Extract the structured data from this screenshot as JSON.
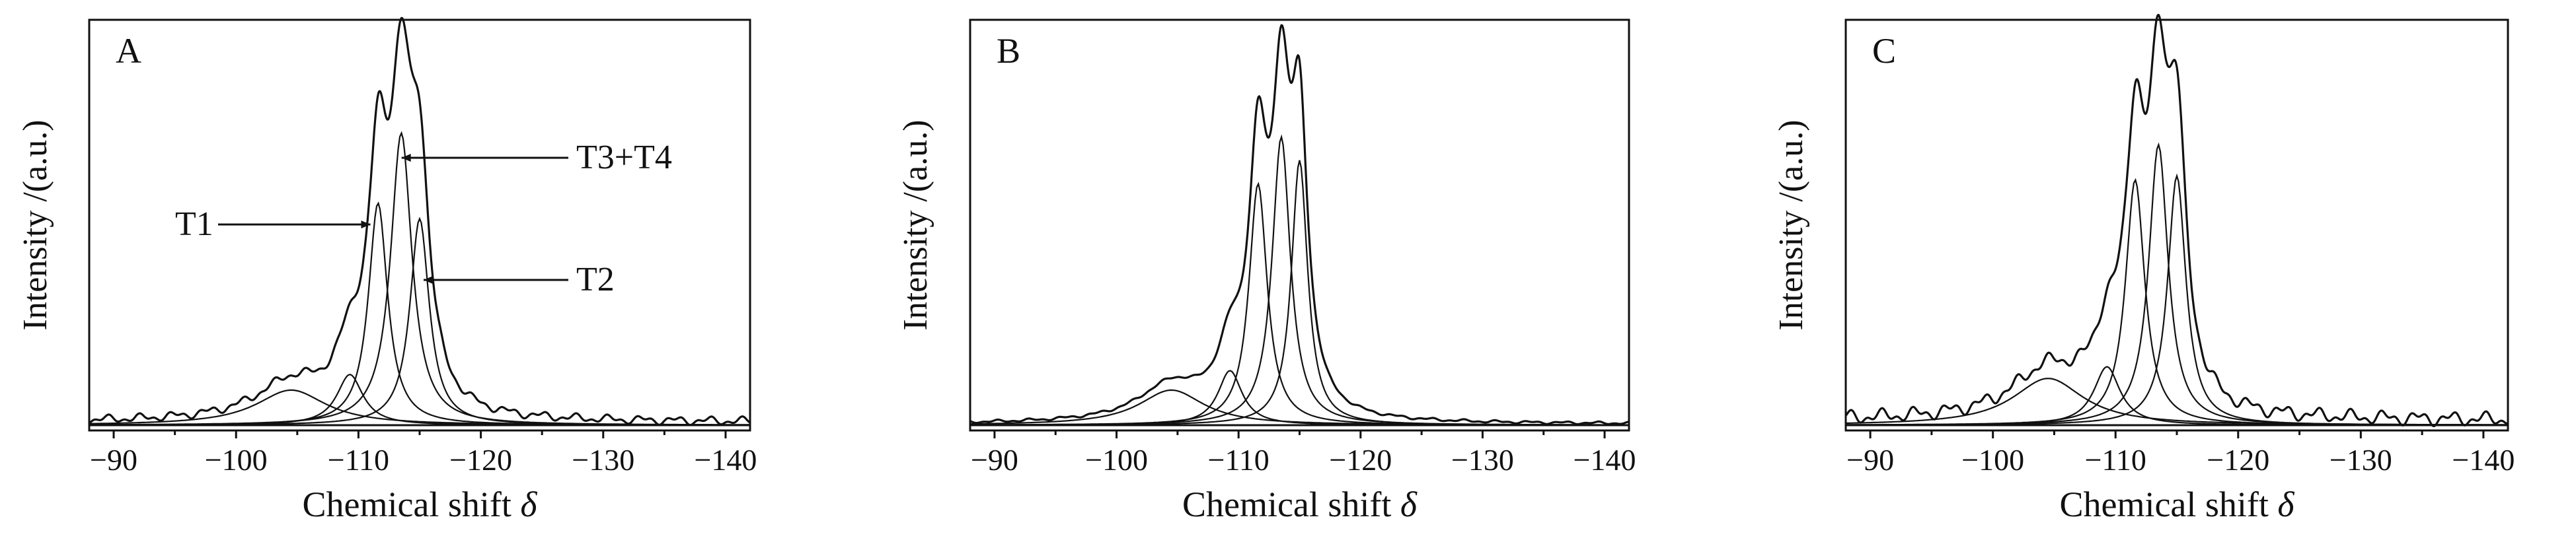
{
  "chart_data": [
    {
      "type": "line",
      "panel_label": "A",
      "xlabel": "Chemical shift",
      "xlabel_symbol": "δ",
      "ylabel": "Intensity /(a.u.)",
      "xlim": [
        -88,
        -142
      ],
      "x_reversed": true,
      "xticks": [
        -90,
        -100,
        -110,
        -120,
        -130,
        -140
      ],
      "components": [
        {
          "center": -104.5,
          "height": 0.09,
          "width": 7.0
        },
        {
          "center": -109.3,
          "height": 0.13,
          "width": 2.6
        },
        {
          "center": -111.6,
          "height": 0.57,
          "width": 1.9
        },
        {
          "center": -113.5,
          "height": 0.75,
          "width": 2.1
        },
        {
          "center": -115.0,
          "height": 0.53,
          "width": 1.9
        }
      ],
      "noise": 0.012,
      "annotations": [
        {
          "text": "T1",
          "target_x": -111.3,
          "target_y": 0.53
        },
        {
          "text": "T3+T4",
          "target_x": -113.2,
          "target_y": 0.74
        },
        {
          "text": "T2",
          "target_x": -115.0,
          "target_y": 0.38
        }
      ]
    },
    {
      "type": "line",
      "panel_label": "B",
      "xlabel": "Chemical shift",
      "xlabel_symbol": "δ",
      "ylabel": "Intensity /(a.u.)",
      "xlim": [
        -88,
        -142
      ],
      "x_reversed": true,
      "xticks": [
        -90,
        -100,
        -110,
        -120,
        -130,
        -140
      ],
      "components": [
        {
          "center": -104.5,
          "height": 0.09,
          "width": 6.5
        },
        {
          "center": -109.3,
          "height": 0.14,
          "width": 2.4
        },
        {
          "center": -111.6,
          "height": 0.62,
          "width": 1.8
        },
        {
          "center": -113.5,
          "height": 0.74,
          "width": 1.8
        },
        {
          "center": -115.0,
          "height": 0.68,
          "width": 1.6
        }
      ],
      "noise": 0.004,
      "annotations": []
    },
    {
      "type": "line",
      "panel_label": "C",
      "xlabel": "Chemical shift",
      "xlabel_symbol": "δ",
      "ylabel": "Intensity /(a.u.)",
      "xlim": [
        -88,
        -142
      ],
      "x_reversed": true,
      "xticks": [
        -90,
        -100,
        -110,
        -120,
        -130,
        -140
      ],
      "components": [
        {
          "center": -104.5,
          "height": 0.12,
          "width": 7.0
        },
        {
          "center": -109.3,
          "height": 0.15,
          "width": 2.6
        },
        {
          "center": -111.6,
          "height": 0.63,
          "width": 1.9
        },
        {
          "center": -113.5,
          "height": 0.72,
          "width": 1.9
        },
        {
          "center": -115.0,
          "height": 0.64,
          "width": 1.8
        }
      ],
      "noise": 0.02,
      "annotations": []
    }
  ]
}
